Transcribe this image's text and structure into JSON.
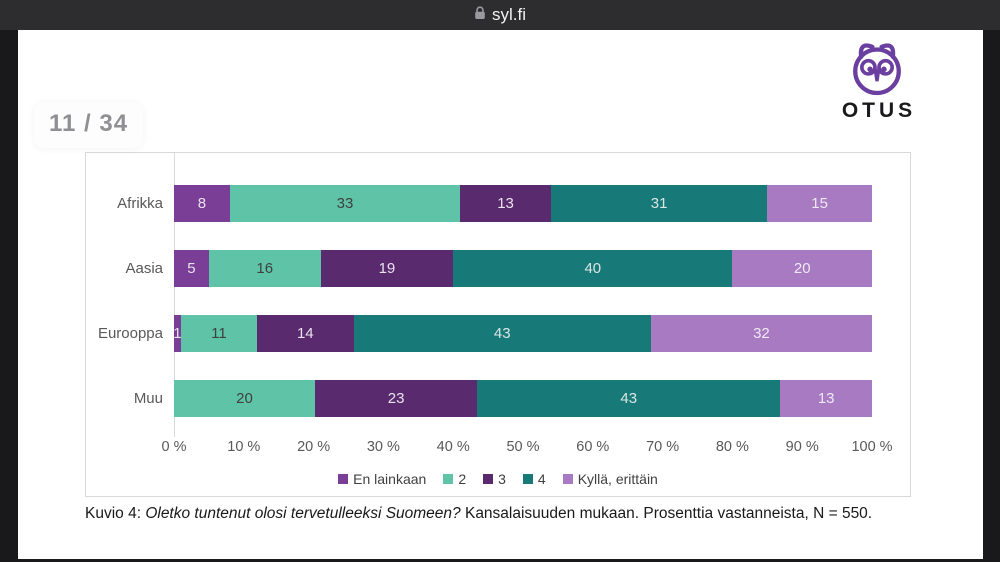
{
  "browser_bar": {
    "url": "syl.fi"
  },
  "page_indicator": {
    "label": "11 / 34"
  },
  "logo": {
    "wordmark": "OTUS",
    "color": "#6b3fa0"
  },
  "chart_data": {
    "type": "bar",
    "orientation": "horizontal",
    "stacked": true,
    "unit": "percent",
    "categories": [
      "Afrikka",
      "Aasia",
      "Eurooppa",
      "Muu"
    ],
    "series": [
      {
        "name": "En lainkaan",
        "color": "#7b3e96",
        "label_color": "#e9e2ef",
        "values": [
          8,
          5,
          1,
          0
        ]
      },
      {
        "name": "2",
        "color": "#5fc4a7",
        "label_color": "#404040",
        "values": [
          33,
          16,
          11,
          20
        ]
      },
      {
        "name": "3",
        "color": "#5a2a6e",
        "label_color": "#e9e2ef",
        "values": [
          13,
          19,
          14,
          23
        ]
      },
      {
        "name": "4",
        "color": "#177a78",
        "label_color": "#dbe5e4",
        "values": [
          31,
          40,
          43,
          43
        ]
      },
      {
        "name": "Kyllä, erittäin",
        "color": "#a77ac2",
        "label_color": "#efe9f5",
        "values": [
          15,
          20,
          32,
          13
        ]
      }
    ],
    "x_ticks": [
      "0 %",
      "10 %",
      "20 %",
      "30 %",
      "40 %",
      "50 %",
      "60 %",
      "70 %",
      "80 %",
      "90 %",
      "100 %"
    ],
    "xlim": [
      0,
      100
    ],
    "grid": "axis-line-at-zero-only",
    "legend_position": "bottom"
  },
  "caption": {
    "prefix": "Kuvio 4: ",
    "italic": "Oletko tuntenut olosi tervetulleeksi Suomeen?",
    "rest": " Kansalaisuuden mukaan. Prosenttia vastanneista, N = 550."
  }
}
